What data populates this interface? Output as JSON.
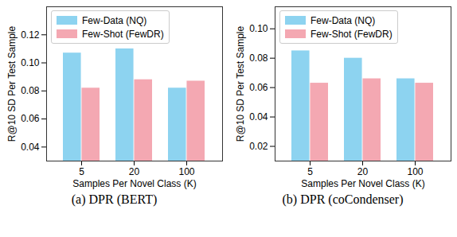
{
  "chart_data": [
    {
      "type": "bar",
      "title": "(a) DPR (BERT)",
      "xlabel": "Samples Per Novel Class (K)",
      "ylabel": "R@10 SD Per Test Sample",
      "categories": [
        5,
        20,
        100
      ],
      "series": [
        {
          "name": "Few-Data (NQ)",
          "color": "#8dd3f0",
          "values": [
            0.107,
            0.11,
            0.082
          ]
        },
        {
          "name": "Few-Shot (FewDR)",
          "color": "#f4a8b2",
          "values": [
            0.082,
            0.088,
            0.087
          ]
        }
      ],
      "ylim": [
        0.03,
        0.14
      ],
      "yticks": [
        0.04,
        0.06,
        0.08,
        {
          "value": 0.1,
          "label": "0.10"
        },
        0.12
      ],
      "legend": "upper left"
    },
    {
      "type": "bar",
      "title": "(b) DPR (coCondenser)",
      "xlabel": "Samples Per Novel Class (K)",
      "ylabel": "R@10 SD Per Test Sample",
      "categories": [
        5,
        20,
        100
      ],
      "series": [
        {
          "name": "Few-Data (NQ)",
          "color": "#8dd3f0",
          "values": [
            0.085,
            0.08,
            0.066
          ]
        },
        {
          "name": "Few-Shot (FewDR)",
          "color": "#f4a8b2",
          "values": [
            0.063,
            0.066,
            0.063
          ]
        }
      ],
      "ylim": [
        0.01,
        0.115
      ],
      "yticks": [
        0.02,
        0.04,
        0.06,
        0.08,
        {
          "value": 0.1,
          "label": "0.10"
        }
      ],
      "legend": "upper left"
    }
  ]
}
